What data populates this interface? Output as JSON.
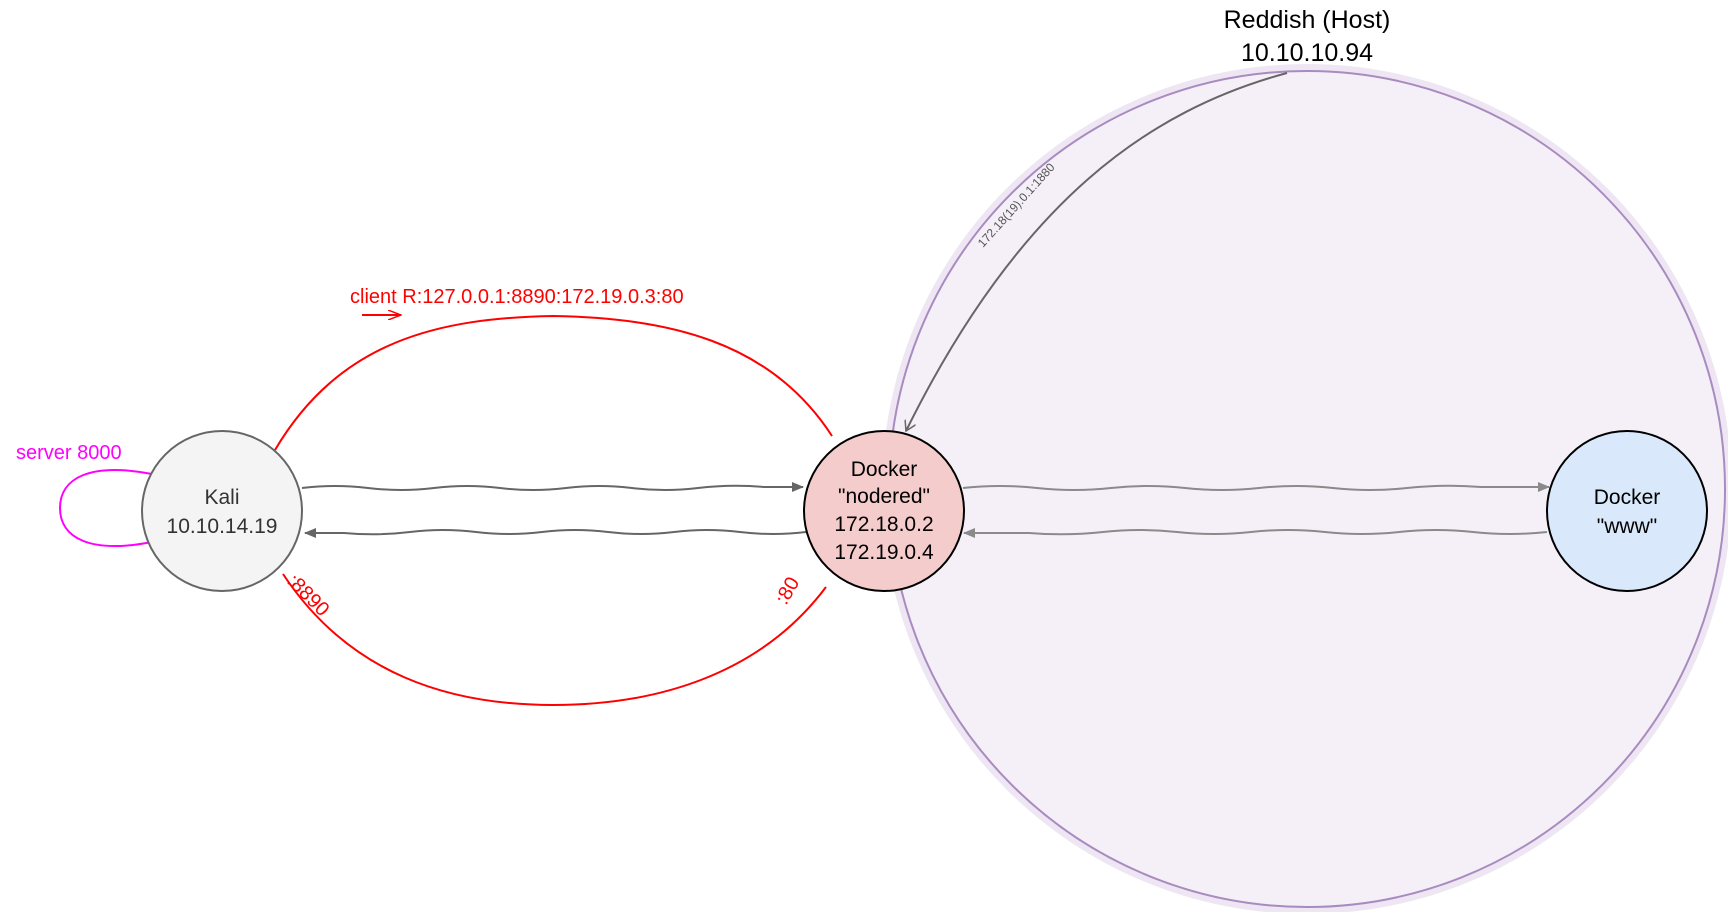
{
  "colors": {
    "host_fill": "#f5f0f8",
    "host_stroke": "#a88bbf",
    "host_halo": "#efe6f4",
    "kali_fill": "#f4f4f4",
    "kali_stroke": "#666666",
    "nodered_fill": "#f5cccc",
    "www_fill": "#dae8fb",
    "node_stroke": "#000000",
    "red": "#ff0000",
    "magenta": "#ff00ff",
    "arrow_dark": "#666666",
    "arrow_light": "#8a8a8a"
  },
  "host": {
    "title": "Reddish (Host)",
    "ip": "10.10.10.94"
  },
  "nodes": {
    "kali": {
      "line1": "Kali",
      "line2": "10.10.14.19"
    },
    "nodered": {
      "line1": "Docker",
      "line2": "\"nodered\"",
      "line3": "172.18.0.2",
      "line4": "172.19.0.4"
    },
    "www": {
      "line1": "Docker",
      "line2": "\"www\""
    }
  },
  "labels": {
    "server": "server 8000",
    "client": "client R:127.0.0.1:8890:172.19.0.3:80",
    "port_kali": ":8890",
    "port_nodered": ":80",
    "host_edge": "172.18(19).0.1:1880"
  }
}
